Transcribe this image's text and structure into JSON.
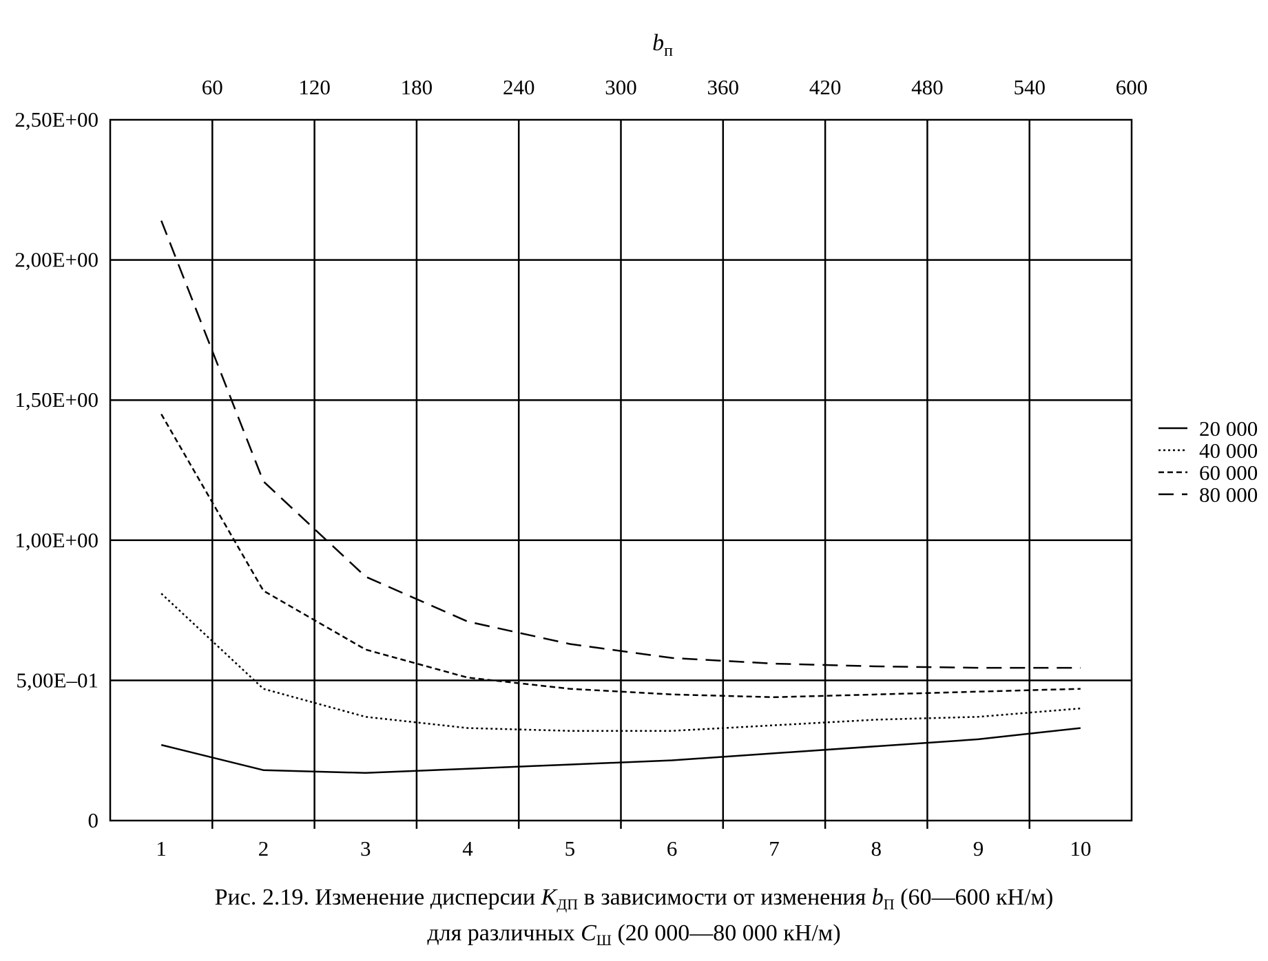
{
  "chart_data": {
    "type": "line",
    "x": [
      1,
      2,
      3,
      4,
      5,
      6,
      7,
      8,
      9,
      10
    ],
    "xlim": [
      0.5,
      10.5
    ],
    "x_ticks": [
      "1",
      "2",
      "3",
      "4",
      "5",
      "6",
      "7",
      "8",
      "9",
      "10"
    ],
    "ylim": [
      0,
      2.5
    ],
    "y_ticks": [
      {
        "value": 0,
        "label": "0"
      },
      {
        "value": 0.5,
        "label": "5,00E–01"
      },
      {
        "value": 1.0,
        "label": "1,00E+00"
      },
      {
        "value": 1.5,
        "label": "1,50E+00"
      },
      {
        "value": 2.0,
        "label": "2,00E+00"
      },
      {
        "value": 2.5,
        "label": "2,50E+00"
      }
    ],
    "top_axis": {
      "label": "b",
      "label_sub": "п",
      "ticks": [
        "60",
        "120",
        "180",
        "240",
        "300",
        "360",
        "420",
        "480",
        "540",
        "600"
      ]
    },
    "grid": true,
    "legend_position": "right",
    "series": [
      {
        "name": "20 000",
        "dash": "solid",
        "values": [
          0.27,
          0.18,
          0.17,
          0.185,
          0.2,
          0.215,
          0.24,
          0.265,
          0.29,
          0.33
        ]
      },
      {
        "name": "40 000",
        "dash": "dotted",
        "values": [
          0.81,
          0.47,
          0.37,
          0.33,
          0.32,
          0.32,
          0.34,
          0.36,
          0.37,
          0.4
        ]
      },
      {
        "name": "60 000",
        "dash": "short-dash",
        "values": [
          1.45,
          0.82,
          0.61,
          0.51,
          0.47,
          0.45,
          0.44,
          0.45,
          0.46,
          0.47
        ]
      },
      {
        "name": "80 000",
        "dash": "long-dash",
        "values": [
          2.14,
          1.21,
          0.87,
          0.71,
          0.63,
          0.58,
          0.56,
          0.55,
          0.545,
          0.545
        ]
      }
    ]
  },
  "caption": {
    "line1_a": "Рис. 2.19. Изменение дисперсии ",
    "line1_K": "K",
    "line1_K_sub": "ДП",
    "line1_b": " в зависимости от изменения ",
    "line1_bp": "b",
    "line1_bp_sub": "П",
    "line1_c": " (60—600 кН/м)",
    "line2_a": "для различных ",
    "line2_C": "C",
    "line2_C_sub": "Ш",
    "line2_b": " (20 000—80 000 кН/м)"
  }
}
